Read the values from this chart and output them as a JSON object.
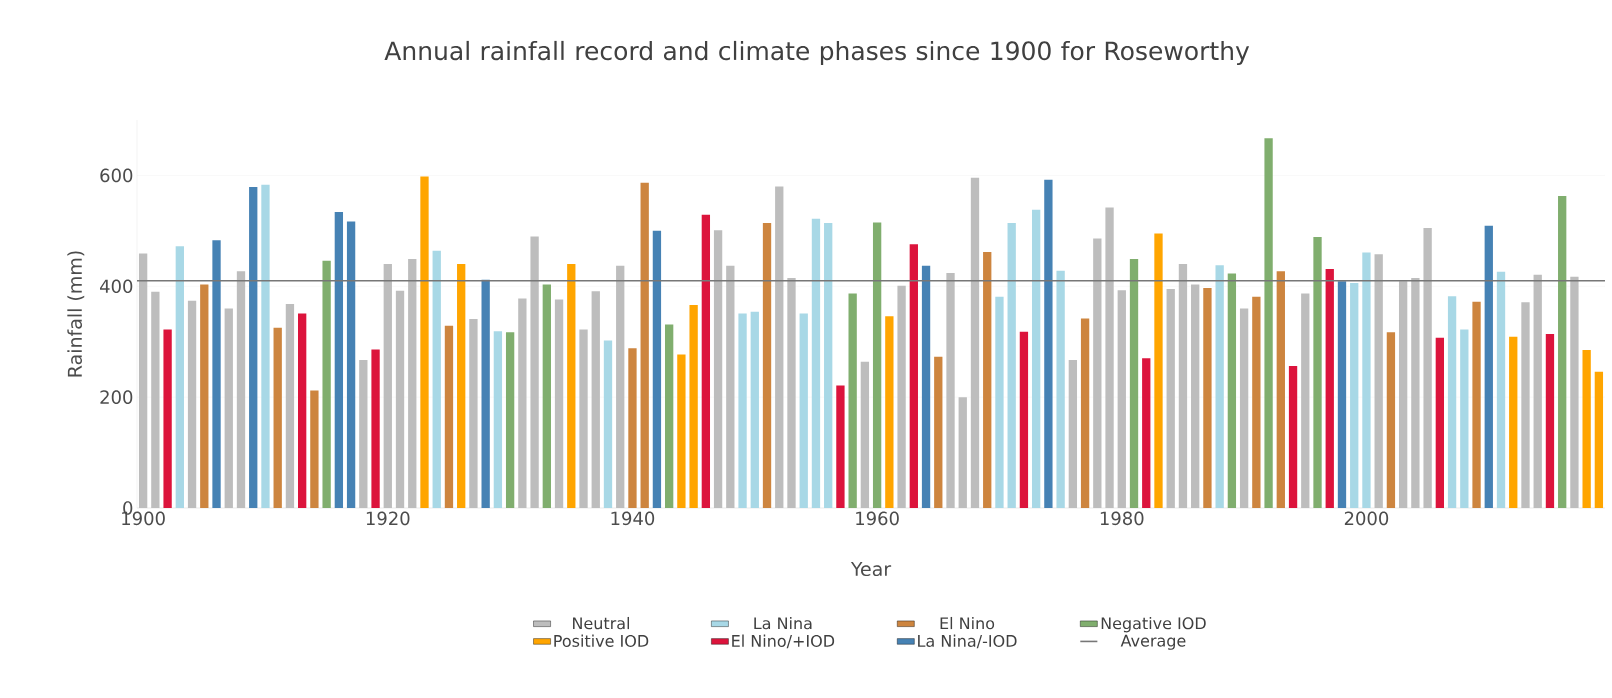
{
  "chart_data": {
    "type": "bar",
    "title": "Annual rainfall record and climate phases since 1900 for Roseworthy",
    "xlabel": "Year",
    "ylabel": "Rainfall (mm)",
    "xlim": [
      1899.5,
      2019.5
    ],
    "xticks": [
      1900,
      1920,
      1940,
      1960,
      1980,
      2000
    ],
    "ylim": [
      0,
      700
    ],
    "yticks": [
      0,
      200,
      400,
      600
    ],
    "grid": "y",
    "legend": "bottom",
    "series": [
      {
        "name": "Neutral",
        "color": "#bdbdbd",
        "x": [
          1900,
          1901,
          1904,
          1907,
          1908,
          1912,
          1918,
          1920,
          1921,
          1922,
          1927,
          1931,
          1932,
          1934,
          1936,
          1937,
          1939,
          1947,
          1948,
          1952,
          1953,
          1959,
          1962,
          1966,
          1967,
          1968,
          1976,
          1978,
          1979,
          1980,
          1984,
          1985,
          1986,
          1990,
          1995,
          2001,
          2003,
          2004,
          2005,
          2013,
          2014,
          2017
        ],
        "values": [
          459,
          390,
          374,
          360,
          427,
          368,
          267,
          440,
          392,
          449,
          341,
          378,
          490,
          376,
          322,
          391,
          437,
          501,
          437,
          580,
          415,
          264,
          401,
          424,
          200,
          596,
          267,
          486,
          542,
          393,
          395,
          440,
          403,
          360,
          387,
          458,
          409,
          415,
          505,
          371,
          421,
          417
        ]
      },
      {
        "name": "La Nina",
        "color": "#a8d8e6",
        "x": [
          1903,
          1910,
          1924,
          1929,
          1938,
          1949,
          1950,
          1954,
          1955,
          1956,
          1970,
          1971,
          1973,
          1975,
          1988,
          1999,
          2000,
          2007,
          2008,
          2011
        ],
        "values": [
          472,
          583,
          464,
          319,
          302,
          351,
          354,
          351,
          522,
          514,
          381,
          514,
          538,
          428,
          438,
          406,
          461,
          382,
          322,
          426
        ]
      },
      {
        "name": "El Nino",
        "color": "#cd853f",
        "x": [
          1905,
          1911,
          1914,
          1925,
          1940,
          1941,
          1951,
          1965,
          1969,
          1977,
          1987,
          1991,
          1993,
          2002,
          2009
        ],
        "values": [
          403,
          325,
          212,
          329,
          288,
          587,
          514,
          273,
          462,
          342,
          397,
          381,
          427,
          317,
          372
        ]
      },
      {
        "name": "Negative IOD",
        "color": "#80ae6e",
        "x": [
          1915,
          1930,
          1933,
          1943,
          1958,
          1960,
          1981,
          1989,
          1992,
          1996,
          2016
        ],
        "values": [
          446,
          317,
          403,
          331,
          387,
          515,
          449,
          423,
          667,
          489,
          563
        ]
      },
      {
        "name": "Positive IOD",
        "color": "#ffa500",
        "x": [
          1923,
          1926,
          1935,
          1944,
          1945,
          1961,
          1983,
          2012,
          2018,
          2019
        ],
        "values": [
          598,
          440,
          440,
          277,
          366,
          346,
          495,
          309,
          285,
          246
        ]
      },
      {
        "name": "El Nino/+IOD",
        "color": "#dc143c",
        "x": [
          1902,
          1913,
          1919,
          1946,
          1957,
          1963,
          1972,
          1982,
          1994,
          1997,
          2006,
          2015
        ],
        "values": [
          322,
          351,
          286,
          529,
          221,
          476,
          318,
          270,
          256,
          431,
          307,
          314
        ]
      },
      {
        "name": "La Nina/-IOD",
        "color": "#4682b4",
        "x": [
          1906,
          1909,
          1916,
          1917,
          1928,
          1942,
          1964,
          1974,
          1998,
          2010
        ],
        "values": [
          483,
          579,
          534,
          517,
          412,
          500,
          437,
          592,
          409,
          509
        ]
      }
    ],
    "ref_lines": [
      {
        "axis": "y",
        "value": 410,
        "label": "Average",
        "color": "#777777",
        "line_style": "solid"
      }
    ]
  }
}
